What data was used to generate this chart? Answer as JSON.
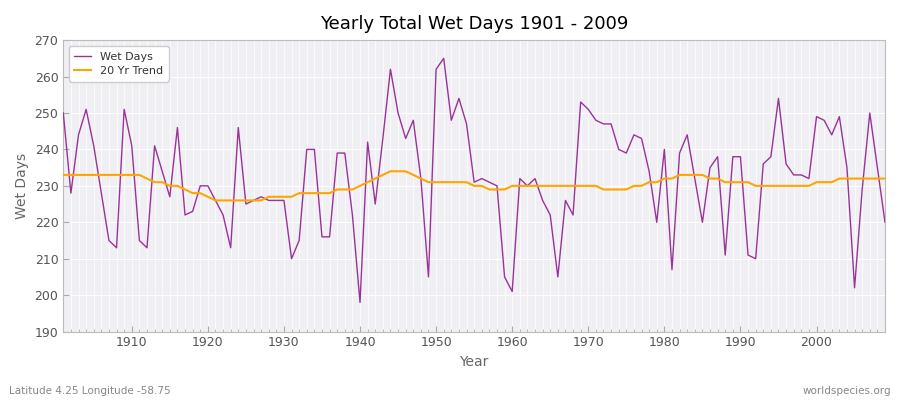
{
  "title": "Yearly Total Wet Days 1901 - 2009",
  "xlabel": "Year",
  "ylabel": "Wet Days",
  "subtitle_left": "Latitude 4.25 Longitude -58.75",
  "subtitle_right": "worldspecies.org",
  "legend_wet": "Wet Days",
  "legend_trend": "20 Yr Trend",
  "wet_color": "#993399",
  "trend_color": "#FFA500",
  "fig_bg_color": "#FFFFFF",
  "plot_bg_color": "#F0F0F4",
  "grid_color": "#FFFFFF",
  "ylim": [
    190,
    270
  ],
  "xlim": [
    1901,
    2009
  ],
  "yticks": [
    190,
    200,
    210,
    220,
    230,
    240,
    250,
    260,
    270
  ],
  "years": [
    1901,
    1902,
    1903,
    1904,
    1905,
    1906,
    1907,
    1908,
    1909,
    1910,
    1911,
    1912,
    1913,
    1914,
    1915,
    1916,
    1917,
    1918,
    1919,
    1920,
    1921,
    1922,
    1923,
    1924,
    1925,
    1926,
    1927,
    1928,
    1929,
    1930,
    1931,
    1932,
    1933,
    1934,
    1935,
    1936,
    1937,
    1938,
    1939,
    1940,
    1941,
    1942,
    1943,
    1944,
    1945,
    1946,
    1947,
    1948,
    1949,
    1950,
    1951,
    1952,
    1953,
    1954,
    1955,
    1956,
    1957,
    1958,
    1959,
    1960,
    1961,
    1962,
    1963,
    1964,
    1965,
    1966,
    1967,
    1968,
    1969,
    1970,
    1971,
    1972,
    1973,
    1974,
    1975,
    1976,
    1977,
    1978,
    1979,
    1980,
    1981,
    1982,
    1983,
    1984,
    1985,
    1986,
    1987,
    1988,
    1989,
    1990,
    1991,
    1992,
    1993,
    1994,
    1995,
    1996,
    1997,
    1998,
    1999,
    2000,
    2001,
    2002,
    2003,
    2004,
    2005,
    2006,
    2007,
    2008,
    2009
  ],
  "wet_days": [
    250,
    228,
    244,
    251,
    241,
    228,
    215,
    213,
    251,
    241,
    215,
    213,
    241,
    234,
    227,
    246,
    222,
    223,
    230,
    230,
    226,
    222,
    213,
    246,
    225,
    226,
    227,
    226,
    226,
    226,
    210,
    215,
    240,
    240,
    216,
    216,
    239,
    239,
    222,
    198,
    242,
    225,
    243,
    262,
    250,
    243,
    248,
    232,
    205,
    262,
    265,
    248,
    254,
    247,
    231,
    232,
    231,
    230,
    205,
    201,
    232,
    230,
    232,
    226,
    222,
    205,
    226,
    222,
    253,
    251,
    248,
    247,
    247,
    240,
    239,
    244,
    243,
    234,
    220,
    240,
    207,
    239,
    244,
    232,
    220,
    235,
    238,
    211,
    238,
    238,
    211,
    210,
    236,
    238,
    254,
    236,
    233,
    233,
    232,
    249,
    248,
    244,
    249,
    235,
    202,
    229,
    250,
    235,
    220
  ],
  "trend_days": [
    233,
    233,
    233,
    233,
    233,
    233,
    233,
    233,
    233,
    233,
    233,
    232,
    231,
    231,
    230,
    230,
    229,
    228,
    228,
    227,
    226,
    226,
    226,
    226,
    226,
    226,
    226,
    227,
    227,
    227,
    227,
    228,
    228,
    228,
    228,
    228,
    229,
    229,
    229,
    230,
    231,
    232,
    233,
    234,
    234,
    234,
    233,
    232,
    231,
    231,
    231,
    231,
    231,
    231,
    230,
    230,
    229,
    229,
    229,
    230,
    230,
    230,
    230,
    230,
    230,
    230,
    230,
    230,
    230,
    230,
    230,
    229,
    229,
    229,
    229,
    230,
    230,
    231,
    231,
    232,
    232,
    233,
    233,
    233,
    233,
    232,
    232,
    231,
    231,
    231,
    231,
    230,
    230,
    230,
    230,
    230,
    230,
    230,
    230,
    231,
    231,
    231,
    232,
    232,
    232,
    232,
    232,
    232,
    232
  ]
}
